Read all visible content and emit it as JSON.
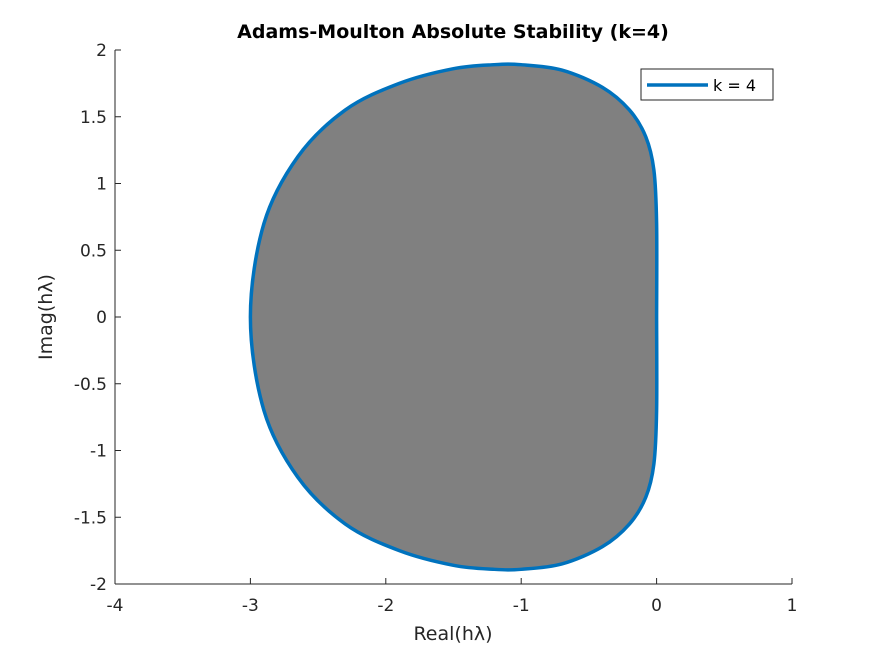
{
  "chart_data": {
    "type": "area",
    "title": "Adams-Moulton Absolute Stability (k=4)",
    "xlabel": "Real(hλ)",
    "ylabel": "Imag(hλ)",
    "xlim": [
      -4,
      1
    ],
    "ylim": [
      -2,
      2
    ],
    "xticks": [
      -4,
      -3,
      -2,
      -1,
      0,
      1
    ],
    "yticks": [
      -2,
      -1.5,
      -1,
      -0.5,
      0,
      0.5,
      1,
      1.5,
      2
    ],
    "xtick_labels": [
      "-4",
      "-3",
      "-2",
      "-1",
      "0",
      "1"
    ],
    "ytick_labels": [
      "-2",
      "-1.5",
      "-1",
      "-0.5",
      "0",
      "0.5",
      "1",
      "1.5",
      "2"
    ],
    "grid": false,
    "legend_position": "top-right",
    "region_fill_color": "#808080",
    "series": [
      {
        "name": "k = 4",
        "color": "#0072BD",
        "x": [
          0,
          0,
          -0.02,
          -0.08,
          -0.2,
          -0.4,
          -0.7,
          -1.0,
          -1.2,
          -1.5,
          -1.9,
          -2.3,
          -2.65,
          -2.9,
          -3.0,
          -2.9,
          -2.65,
          -2.3,
          -1.9,
          -1.5,
          -1.2,
          -1.0,
          -0.7,
          -0.4,
          -0.2,
          -0.08,
          -0.02,
          0,
          0
        ],
        "y": [
          0,
          0.7,
          1.1,
          1.35,
          1.55,
          1.72,
          1.85,
          1.89,
          1.89,
          1.86,
          1.75,
          1.55,
          1.2,
          0.7,
          0,
          -0.7,
          -1.2,
          -1.55,
          -1.75,
          -1.86,
          -1.89,
          -1.89,
          -1.85,
          -1.72,
          -1.55,
          -1.35,
          -1.1,
          -0.7,
          0
        ]
      }
    ]
  }
}
